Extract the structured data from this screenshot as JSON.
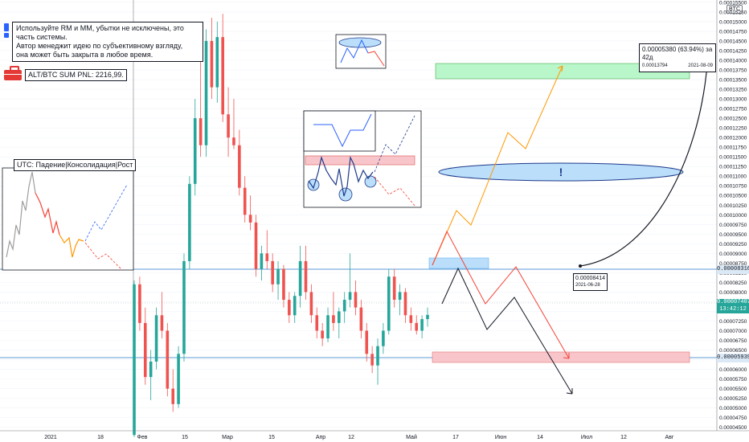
{
  "notes": {
    "risk_line1": "Используйте RM и MM, убытки не исключены, это часть системы.",
    "risk_line2": "Автор менеджит идею по субъективному взгляду,",
    "risk_line3": "она может быть закрыта в любое время.",
    "pnl": "ALT/BTC SUM PNL: 2216,99.",
    "utc": "UTC: Падение|Консолидация|Рост",
    "exclamation": "!"
  },
  "measure": {
    "line1": "0.00005380 (63.94%) за 42д",
    "line2_price": "0.00013794",
    "line2_date": "2021-08-09",
    "start_price": "0.00008414",
    "start_date": "2021-06-28"
  },
  "price_axis": {
    "badge": "BTC",
    "ticks": [
      "0.00015500",
      "0.00015250",
      "0.00015000",
      "0.00014750",
      "0.00014500",
      "0.00014250",
      "0.00014000",
      "0.00013750",
      "0.00013500",
      "0.00013250",
      "0.00013000",
      "0.00012750",
      "0.00012500",
      "0.00012250",
      "0.00012000",
      "0.00011750",
      "0.00011500",
      "0.00011250",
      "0.00011000",
      "0.00010750",
      "0.00010500",
      "0.00010250",
      "0.00010000",
      "0.00009750",
      "0.00009500",
      "0.00009250",
      "0.00009000",
      "0.00008750",
      "0.00008500",
      "0.00008250",
      "0.00008000",
      "0.00007750",
      "0.00007500",
      "0.00007250",
      "0.00007000",
      "0.00006750",
      "0.00006500",
      "0.00006250",
      "0.00006000",
      "0.00005750",
      "0.00005500",
      "0.00005250",
      "0.00005000",
      "0.00004750",
      "0.00004500"
    ],
    "level_upper": "0.00008316",
    "current_price": "0.00007407",
    "current_time": "13:42:12",
    "level_lower": "0.00005939"
  },
  "time_axis": {
    "labels": [
      "2021",
      "18",
      "Фев",
      "15",
      "Мар",
      "15",
      "Апр",
      "12",
      "Май",
      "17",
      "Июн",
      "14",
      "Июл",
      "12",
      "Авг"
    ]
  },
  "colors": {
    "up": "#26a69a",
    "down": "#ef5350",
    "level_line": "#5b9bd5",
    "green_zone": "#b9f6ca",
    "red_zone": "#f8c6ca",
    "blue_zone": "#bbdefb",
    "orange_path": "#ff9800",
    "red_path": "#f44336",
    "black_path": "#131722"
  },
  "chart_data": {
    "type": "candlestick",
    "title": "",
    "ylim": [
      4.41e-05,
      0.0001556
    ],
    "levels": [
      8.316e-05,
      5.939e-05
    ],
    "current_price": 7.407e-05,
    "x": [
      "2021-01-22",
      "2021-01-24",
      "2021-01-26",
      "2021-01-28",
      "2021-01-30",
      "2021-02-01",
      "2021-02-03",
      "2021-02-05",
      "2021-02-07",
      "2021-02-09",
      "2021-02-11",
      "2021-02-13",
      "2021-02-15",
      "2021-02-17",
      "2021-02-19",
      "2021-02-21",
      "2021-02-23",
      "2021-02-25",
      "2021-02-27",
      "2021-03-01",
      "2021-03-03",
      "2021-03-05",
      "2021-03-07",
      "2021-03-09",
      "2021-03-11",
      "2021-03-13",
      "2021-03-15",
      "2021-03-17",
      "2021-03-19",
      "2021-03-21",
      "2021-03-23",
      "2021-03-25",
      "2021-03-27",
      "2021-03-29",
      "2021-03-31",
      "2021-04-02",
      "2021-04-04",
      "2021-04-06",
      "2021-04-08",
      "2021-04-10",
      "2021-04-12",
      "2021-04-14",
      "2021-04-16",
      "2021-04-18",
      "2021-04-20",
      "2021-04-22",
      "2021-04-24",
      "2021-04-26",
      "2021-04-28",
      "2021-04-30",
      "2021-05-02",
      "2021-05-04",
      "2021-05-06",
      "2021-05-08"
    ],
    "ohlc": [
      [
        4.3e-05,
        8.3e-05,
        4.25e-05,
        8.2e-05
      ],
      [
        8.2e-05,
        8.4e-05,
        7e-05,
        7.2e-05
      ],
      [
        7.2e-05,
        7.6e-05,
        5.6e-05,
        5.8e-05
      ],
      [
        5.8e-05,
        6.5e-05,
        5.2e-05,
        6.2e-05
      ],
      [
        6.2e-05,
        7.6e-05,
        6e-05,
        7.4e-05
      ],
      [
        7.4e-05,
        8e-05,
        6.8e-05,
        7e-05
      ],
      [
        7e-05,
        7.2e-05,
        5.3e-05,
        5.5e-05
      ],
      [
        5.5e-05,
        6e-05,
        4.9e-05,
        5.1e-05
      ],
      [
        5.1e-05,
        6.6e-05,
        5e-05,
        6.4e-05
      ],
      [
        6.4e-05,
        9e-05,
        6.2e-05,
        8.8e-05
      ],
      [
        8.8e-05,
        0.00011,
        8.6e-05,
        0.000108
      ],
      [
        0.000108,
        0.00013,
        0.000105,
        0.000125
      ],
      [
        0.000125,
        0.000142,
        0.000115,
        0.000118
      ],
      [
        0.000118,
        0.000148,
        0.000115,
        0.000145
      ],
      [
        0.000145,
        0.000151,
        0.00013,
        0.000133
      ],
      [
        0.000133,
        0.00015,
        0.000129,
        0.000146
      ],
      [
        0.000146,
        0.000152,
        0.000124,
        0.000126
      ],
      [
        0.000126,
        0.000133,
        0.000115,
        0.00012
      ],
      [
        0.00012,
        0.00013,
        0.000117,
        0.000118
      ],
      [
        0.000118,
        0.000122,
        0.000105,
        0.000107
      ],
      [
        0.000107,
        0.00011,
        9.8e-05,
        0.0001
      ],
      [
        0.0001,
        0.000105,
        9.6e-05,
        9.8e-05
      ],
      [
        9.8e-05,
        0.0001,
        8.4e-05,
        8.6e-05
      ],
      [
        8.6e-05,
        9.2e-05,
        8.3e-05,
        9e-05
      ],
      [
        9e-05,
        9.6e-05,
        8.6e-05,
        8.8e-05
      ],
      [
        8.8e-05,
        9e-05,
        8e-05,
        8.2e-05
      ],
      [
        8.2e-05,
        8.8e-05,
        7.8e-05,
        8.6e-05
      ],
      [
        8.6e-05,
        8.7e-05,
        7.6e-05,
        7.8e-05
      ],
      [
        7.8e-05,
        8e-05,
        7.2e-05,
        7.4e-05
      ],
      [
        7.4e-05,
        8e-05,
        7.2e-05,
        7.9e-05
      ],
      [
        7.9e-05,
        9.2e-05,
        7.6e-05,
        8.8e-05
      ],
      [
        8.8e-05,
        9.2e-05,
        7.8e-05,
        8e-05
      ],
      [
        8e-05,
        8.2e-05,
        7.2e-05,
        7.4e-05
      ],
      [
        7.4e-05,
        7.6e-05,
        6.8e-05,
        7e-05
      ],
      [
        7e-05,
        7.2e-05,
        6.6e-05,
        6.8e-05
      ],
      [
        6.8e-05,
        7.6e-05,
        6.7e-05,
        7.4e-05
      ],
      [
        7.4e-05,
        8e-05,
        7e-05,
        7.2e-05
      ],
      [
        7.2e-05,
        7.6e-05,
        6.8e-05,
        7.5e-05
      ],
      [
        7.5e-05,
        8e-05,
        7.2e-05,
        7.8e-05
      ],
      [
        7.8e-05,
        9e-05,
        7.6e-05,
        8e-05
      ],
      [
        8e-05,
        8.3e-05,
        7.4e-05,
        7.6e-05
      ],
      [
        7.6e-05,
        7.8e-05,
        6.8e-05,
        7e-05
      ],
      [
        7e-05,
        7.2e-05,
        6.2e-05,
        6.4e-05
      ],
      [
        6.4e-05,
        6.6e-05,
        5.9e-05,
        6.1e-05
      ],
      [
        6.1e-05,
        6.8e-05,
        5.6e-05,
        6.6e-05
      ],
      [
        6.6e-05,
        7.2e-05,
        6.4e-05,
        7e-05
      ],
      [
        7e-05,
        8.6e-05,
        6.9e-05,
        8.4e-05
      ],
      [
        8.4e-05,
        8.6e-05,
        7.6e-05,
        7.8e-05
      ],
      [
        7.8e-05,
        8.2e-05,
        7.4e-05,
        8e-05
      ],
      [
        8e-05,
        8.1e-05,
        7.2e-05,
        7.4e-05
      ],
      [
        7.4e-05,
        7.6e-05,
        7e-05,
        7.2e-05
      ],
      [
        7.2e-05,
        7.4e-05,
        6.9e-05,
        7e-05
      ],
      [
        7e-05,
        7.4e-05,
        6.8e-05,
        7.3e-05
      ],
      [
        7.3e-05,
        7.6e-05,
        7.1e-05,
        7.41e-05
      ]
    ]
  }
}
